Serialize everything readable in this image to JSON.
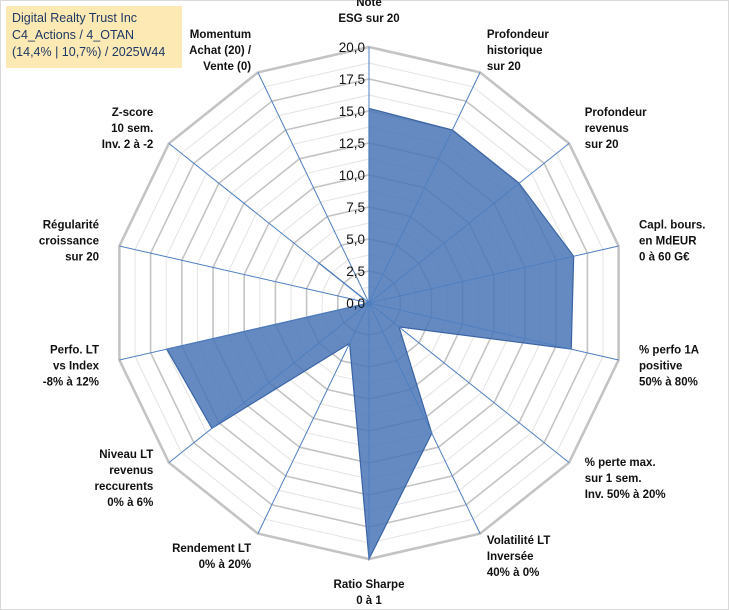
{
  "title_box": {
    "line1": "Digital Realty Trust Inc",
    "line2": "C4_Actions / 4_OTAN",
    "line3": "(14,4% | 10,7%) / 2025W44"
  },
  "colors": {
    "fill": "#4a76b6",
    "stroke": "#3a64a6",
    "grid": "#c8c8c8",
    "spoke": "#4f7fc0",
    "title_bg": "#fde9b3",
    "title_text": "#1f3864"
  },
  "chart_data": {
    "type": "radar",
    "rmax": 20,
    "ticks": [
      "0,0",
      "2,5",
      "5,0",
      "7,5",
      "10,0",
      "12,5",
      "15,0",
      "17,5",
      "20,0"
    ],
    "axes": [
      {
        "lines": [
          "Note",
          "ESG sur 20"
        ]
      },
      {
        "lines": [
          "Profondeur",
          "historique",
          "sur 20"
        ]
      },
      {
        "lines": [
          "Profondeur",
          "revenus",
          "sur 20"
        ]
      },
      {
        "lines": [
          "Capl. bours.",
          "en MdEUR",
          "0 à 60 G€"
        ]
      },
      {
        "lines": [
          "% perfo 1A",
          "positive",
          "50% à 80%"
        ]
      },
      {
        "lines": [
          "% perte max.",
          "sur 1 sem.",
          "Inv. 50% à 20%"
        ]
      },
      {
        "lines": [
          "Volatilité LT",
          "Inversée",
          "40% à 0%"
        ]
      },
      {
        "lines": [
          "Ratio Sharpe",
          "0 à 1"
        ]
      },
      {
        "lines": [
          "Rendement LT",
          "0% à 20%"
        ]
      },
      {
        "lines": [
          "Niveau LT",
          "revenus",
          "reccurents",
          "0% à 6%"
        ]
      },
      {
        "lines": [
          "Perfo. LT",
          "vs Index",
          "-8% à 12%"
        ]
      },
      {
        "lines": [
          "Régularité",
          "croissance",
          "sur 20"
        ]
      },
      {
        "lines": [
          "Z-score",
          "10 sem.",
          "Inv. 2 à -2"
        ]
      },
      {
        "lines": [
          "Momentum",
          "Achat (20) /",
          "Vente (0)"
        ]
      }
    ],
    "values": [
      15.2,
      15.0,
      15.0,
      16.4,
      16.2,
      3.0,
      11.3,
      20.0,
      3.5,
      15.7,
      16.2,
      0,
      5.0,
      0
    ]
  }
}
